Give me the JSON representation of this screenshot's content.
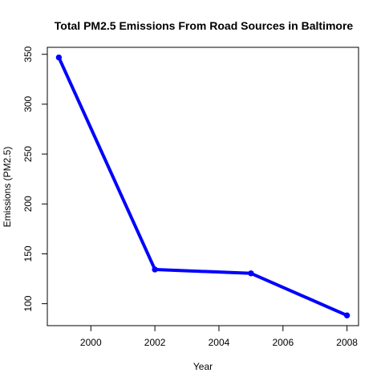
{
  "chart_data": {
    "type": "line",
    "title": "Total PM2.5 Emissions From Road Sources in Baltimore",
    "xlabel": "Year",
    "ylabel": "Emissions (PM2.5)",
    "x": [
      1999,
      2002,
      2005,
      2008
    ],
    "series": [
      {
        "values": [
          346.82,
          134.31,
          130.43,
          88.28
        ]
      }
    ],
    "xlim": [
      1998.64,
      2008.36
    ],
    "ylim": [
      78,
      357
    ],
    "x_ticks": [
      2000,
      2002,
      2004,
      2006,
      2008
    ],
    "x_tick_labels": [
      "2000",
      "2002",
      "2004",
      "2006",
      "2008"
    ],
    "y_ticks": [
      100,
      150,
      200,
      250,
      300,
      350
    ],
    "y_tick_labels": [
      "100",
      "150",
      "200",
      "250",
      "300",
      "350"
    ],
    "grid": false,
    "legend": "none",
    "line_color": "#0000ff"
  }
}
